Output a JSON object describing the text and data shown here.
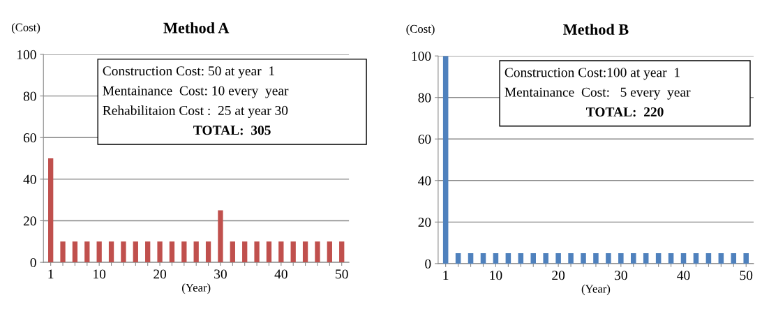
{
  "chart_data": [
    {
      "type": "bar",
      "title": "Method A",
      "ylabel": "(Cost)",
      "xlabel": "(Year)",
      "categories": [
        "1",
        null,
        null,
        null,
        "10",
        null,
        null,
        null,
        null,
        "20",
        null,
        null,
        null,
        null,
        "30",
        null,
        null,
        null,
        null,
        "40",
        null,
        null,
        null,
        null,
        "50"
      ],
      "values": [
        50,
        10,
        10,
        10,
        10,
        10,
        10,
        10,
        10,
        10,
        10,
        10,
        10,
        10,
        25,
        10,
        10,
        10,
        10,
        10,
        10,
        10,
        10,
        10,
        10
      ],
      "color": "#c0504d",
      "ylim": [
        0,
        100
      ],
      "yticks": [
        0,
        20,
        40,
        60,
        80,
        100
      ],
      "grid": "y",
      "annotations": [
        "Construction Cost: 50 at year  1",
        "Mentainance  Cost: 10 every  year",
        "Rehabilitaion Cost :  25 at year 30",
        "TOTAL:  305"
      ]
    },
    {
      "type": "bar",
      "title": "Method B",
      "ylabel": "(Cost)",
      "xlabel": "(Year)",
      "categories": [
        "1",
        null,
        null,
        null,
        "10",
        null,
        null,
        null,
        null,
        "20",
        null,
        null,
        null,
        null,
        "30",
        null,
        null,
        null,
        null,
        "40",
        null,
        null,
        null,
        null,
        "50"
      ],
      "values": [
        100,
        5,
        5,
        5,
        5,
        5,
        5,
        5,
        5,
        5,
        5,
        5,
        5,
        5,
        5,
        5,
        5,
        5,
        5,
        5,
        5,
        5,
        5,
        5,
        5
      ],
      "color": "#4f81bd",
      "ylim": [
        0,
        100
      ],
      "yticks": [
        0,
        20,
        40,
        60,
        80,
        100
      ],
      "grid": "y",
      "annotations": [
        "Construction Cost:100 at year  1",
        "Mentainance  Cost:   5 every  year",
        "TOTAL:  220"
      ]
    }
  ]
}
